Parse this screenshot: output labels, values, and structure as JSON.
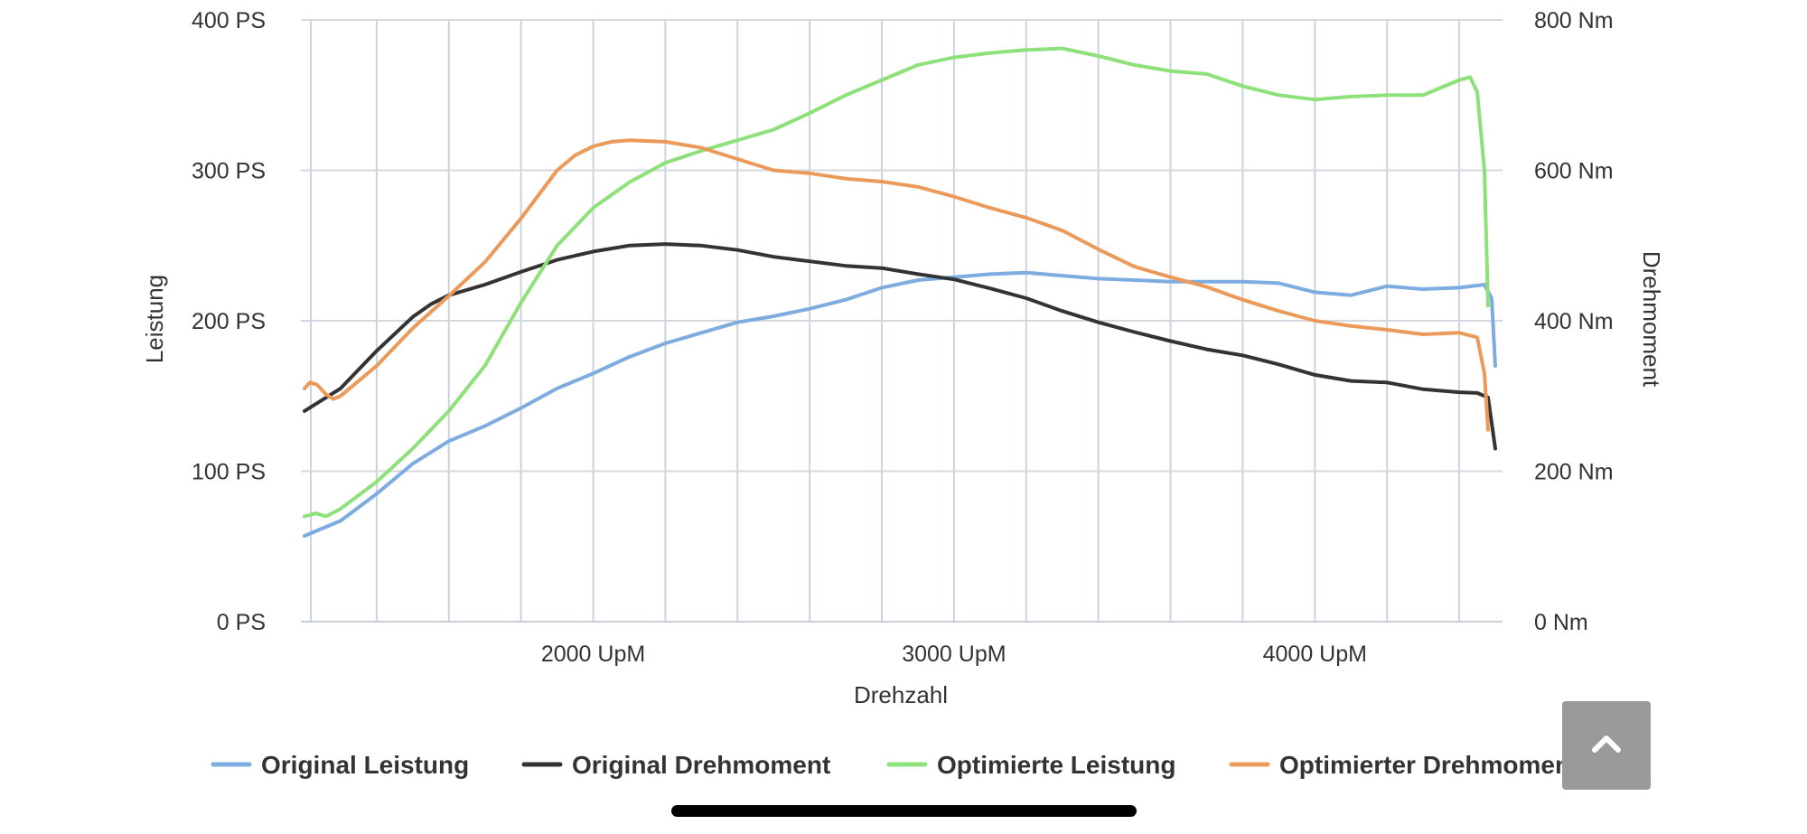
{
  "chart_data": {
    "type": "line",
    "xlabel": "Drehzahl",
    "ylabel_left": "Leistung",
    "ylabel_right": "Drehmoment",
    "x_unit": "UpM",
    "xlim": [
      1190,
      4520
    ],
    "x_ticks": [
      2000,
      3000,
      4000
    ],
    "x_tick_labels": [
      "2000 UpM",
      "3000 UpM",
      "4000 UpM"
    ],
    "x_minor_grid": [
      1400,
      1600,
      1800,
      2200,
      2400,
      2600,
      2800,
      3200,
      3400,
      3600,
      3800,
      4200,
      4400
    ],
    "ylim_left": [
      0,
      400
    ],
    "ylim_right": [
      0,
      800
    ],
    "y_ticks_left": [
      0,
      100,
      200,
      300,
      400
    ],
    "y_tick_labels_left": [
      "0 PS",
      "100 PS",
      "200 PS",
      "300 PS",
      "400 PS"
    ],
    "y_tick_labels_right": [
      "0 Nm",
      "200 Nm",
      "400 Nm",
      "600 Nm",
      "800 Nm"
    ],
    "grid": true,
    "legend_position": "bottom",
    "series": [
      {
        "name": "Original Leistung",
        "axis": "left",
        "color": "#7cace0",
        "points": [
          [
            1200,
            57
          ],
          [
            1300,
            67
          ],
          [
            1400,
            85
          ],
          [
            1500,
            105
          ],
          [
            1600,
            120
          ],
          [
            1700,
            130
          ],
          [
            1800,
            142
          ],
          [
            1900,
            155
          ],
          [
            2000,
            165
          ],
          [
            2100,
            176
          ],
          [
            2200,
            185
          ],
          [
            2300,
            192
          ],
          [
            2400,
            199
          ],
          [
            2500,
            203
          ],
          [
            2600,
            208
          ],
          [
            2700,
            214
          ],
          [
            2800,
            222
          ],
          [
            2900,
            227
          ],
          [
            3000,
            229
          ],
          [
            3100,
            231
          ],
          [
            3200,
            232
          ],
          [
            3300,
            230
          ],
          [
            3400,
            228
          ],
          [
            3500,
            227
          ],
          [
            3600,
            226
          ],
          [
            3700,
            226
          ],
          [
            3800,
            226
          ],
          [
            3900,
            225
          ],
          [
            4000,
            219
          ],
          [
            4100,
            217
          ],
          [
            4200,
            223
          ],
          [
            4300,
            221
          ],
          [
            4400,
            222
          ],
          [
            4470,
            224
          ],
          [
            4490,
            215
          ],
          [
            4500,
            170
          ]
        ]
      },
      {
        "name": "Original Drehmoment",
        "axis": "right",
        "color": "#333333",
        "points": [
          [
            1200,
            280
          ],
          [
            1300,
            310
          ],
          [
            1400,
            360
          ],
          [
            1500,
            405
          ],
          [
            1550,
            422
          ],
          [
            1600,
            434
          ],
          [
            1700,
            448
          ],
          [
            1800,
            465
          ],
          [
            1900,
            481
          ],
          [
            2000,
            492
          ],
          [
            2100,
            500
          ],
          [
            2200,
            502
          ],
          [
            2300,
            500
          ],
          [
            2400,
            494
          ],
          [
            2500,
            485
          ],
          [
            2600,
            479
          ],
          [
            2700,
            473
          ],
          [
            2800,
            470
          ],
          [
            2900,
            462
          ],
          [
            3000,
            455
          ],
          [
            3100,
            443
          ],
          [
            3200,
            430
          ],
          [
            3300,
            413
          ],
          [
            3400,
            398
          ],
          [
            3500,
            385
          ],
          [
            3600,
            373
          ],
          [
            3700,
            362
          ],
          [
            3800,
            354
          ],
          [
            3900,
            342
          ],
          [
            4000,
            328
          ],
          [
            4100,
            320
          ],
          [
            4200,
            318
          ],
          [
            4300,
            309
          ],
          [
            4400,
            305
          ],
          [
            4450,
            304
          ],
          [
            4480,
            298
          ],
          [
            4500,
            230
          ]
        ]
      },
      {
        "name": "Optimierte Leistung",
        "axis": "left",
        "color": "#8ee07a",
        "points": [
          [
            1200,
            70
          ],
          [
            1230,
            72
          ],
          [
            1260,
            70
          ],
          [
            1300,
            75
          ],
          [
            1400,
            93
          ],
          [
            1500,
            115
          ],
          [
            1600,
            140
          ],
          [
            1700,
            170
          ],
          [
            1800,
            212
          ],
          [
            1900,
            250
          ],
          [
            2000,
            275
          ],
          [
            2100,
            292
          ],
          [
            2200,
            305
          ],
          [
            2300,
            313
          ],
          [
            2400,
            320
          ],
          [
            2500,
            327
          ],
          [
            2600,
            338
          ],
          [
            2700,
            350
          ],
          [
            2800,
            360
          ],
          [
            2900,
            370
          ],
          [
            3000,
            375
          ],
          [
            3100,
            378
          ],
          [
            3200,
            380
          ],
          [
            3300,
            381
          ],
          [
            3400,
            376
          ],
          [
            3500,
            370
          ],
          [
            3600,
            366
          ],
          [
            3700,
            364
          ],
          [
            3800,
            356
          ],
          [
            3900,
            350
          ],
          [
            4000,
            347
          ],
          [
            4100,
            349
          ],
          [
            4200,
            350
          ],
          [
            4300,
            350
          ],
          [
            4350,
            355
          ],
          [
            4400,
            360
          ],
          [
            4430,
            362
          ],
          [
            4450,
            352
          ],
          [
            4470,
            300
          ],
          [
            4480,
            210
          ]
        ]
      },
      {
        "name": "Optimierter Drehmoment",
        "axis": "right",
        "color": "#eb9a5a",
        "points": [
          [
            1200,
            310
          ],
          [
            1215,
            318
          ],
          [
            1235,
            315
          ],
          [
            1260,
            302
          ],
          [
            1280,
            296
          ],
          [
            1300,
            300
          ],
          [
            1400,
            340
          ],
          [
            1500,
            390
          ],
          [
            1600,
            433
          ],
          [
            1700,
            478
          ],
          [
            1800,
            536
          ],
          [
            1900,
            600
          ],
          [
            1950,
            620
          ],
          [
            2000,
            632
          ],
          [
            2050,
            638
          ],
          [
            2100,
            640
          ],
          [
            2200,
            638
          ],
          [
            2300,
            630
          ],
          [
            2400,
            615
          ],
          [
            2500,
            600
          ],
          [
            2600,
            596
          ],
          [
            2700,
            589
          ],
          [
            2800,
            585
          ],
          [
            2900,
            578
          ],
          [
            3000,
            565
          ],
          [
            3100,
            550
          ],
          [
            3200,
            537
          ],
          [
            3300,
            520
          ],
          [
            3400,
            495
          ],
          [
            3500,
            472
          ],
          [
            3600,
            458
          ],
          [
            3700,
            445
          ],
          [
            3800,
            428
          ],
          [
            3900,
            413
          ],
          [
            4000,
            400
          ],
          [
            4100,
            393
          ],
          [
            4200,
            388
          ],
          [
            4300,
            382
          ],
          [
            4400,
            384
          ],
          [
            4450,
            378
          ],
          [
            4470,
            330
          ],
          [
            4480,
            255
          ]
        ]
      }
    ]
  },
  "ui": {
    "scroll_top_icon": "chevron-up-icon"
  }
}
